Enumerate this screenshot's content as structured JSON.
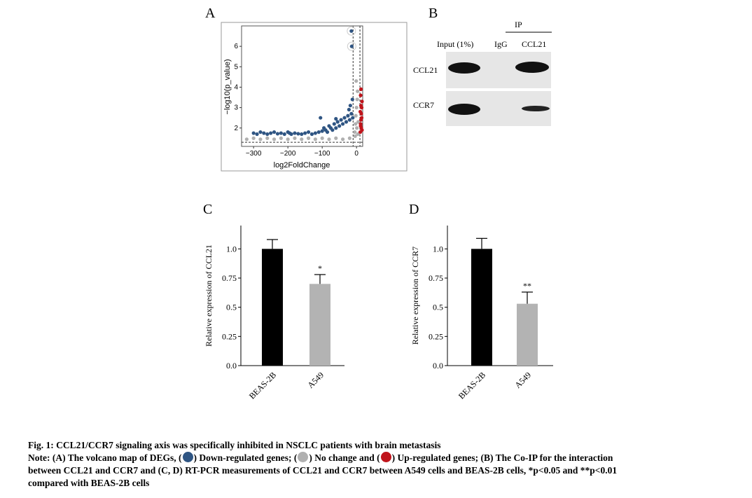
{
  "panels": {
    "a": "A",
    "b": "B",
    "c": "C",
    "d": "D"
  },
  "chart_data": [
    {
      "panel": "A",
      "type": "scatter",
      "xlabel": "log2FoldChange",
      "ylabel": "−log10(p_value)",
      "xticks": [
        -300,
        -200,
        -100,
        0
      ],
      "yticks": [
        2,
        3,
        4,
        5,
        6
      ],
      "xlim": [
        -335,
        18
      ],
      "ylim": [
        1.1,
        7.0
      ],
      "vlines": [
        -10,
        10
      ],
      "hline": 1.3,
      "series": [
        {
          "key": "down",
          "color": "#2f5583",
          "points": [
            [
              -300,
              1.75
            ],
            [
              -290,
              1.7
            ],
            [
              -280,
              1.8
            ],
            [
              -270,
              1.75
            ],
            [
              -260,
              1.7
            ],
            [
              -250,
              1.75
            ],
            [
              -240,
              1.8
            ],
            [
              -230,
              1.72
            ],
            [
              -220,
              1.75
            ],
            [
              -210,
              1.7
            ],
            [
              -200,
              1.8
            ],
            [
              -195,
              1.75
            ],
            [
              -190,
              1.7
            ],
            [
              -180,
              1.75
            ],
            [
              -170,
              1.72
            ],
            [
              -160,
              1.7
            ],
            [
              -150,
              1.75
            ],
            [
              -140,
              1.8
            ],
            [
              -130,
              1.7
            ],
            [
              -120,
              1.75
            ],
            [
              -110,
              1.8
            ],
            [
              -100,
              1.85
            ],
            [
              -95,
              2.0
            ],
            [
              -90,
              1.9
            ],
            [
              -85,
              1.8
            ],
            [
              -80,
              2.1
            ],
            [
              -75,
              2.0
            ],
            [
              -70,
              1.9
            ],
            [
              -65,
              2.2
            ],
            [
              -60,
              2.0
            ],
            [
              -55,
              2.3
            ],
            [
              -50,
              2.1
            ],
            [
              -45,
              2.4
            ],
            [
              -40,
              2.2
            ],
            [
              -35,
              2.5
            ],
            [
              -30,
              2.3
            ],
            [
              -25,
              2.6
            ],
            [
              -22,
              2.9
            ],
            [
              -20,
              2.4
            ],
            [
              -18,
              3.1
            ],
            [
              -15,
              2.7
            ],
            [
              -12,
              3.4
            ],
            [
              -11,
              2.5
            ],
            [
              -105,
              2.5
            ],
            [
              -60,
              2.45
            ],
            [
              -15,
              6.75
            ],
            [
              -14,
              6.0
            ]
          ]
        },
        {
          "key": "nochange",
          "color": "#b0b0b0",
          "points": [
            [
              -320,
              1.45
            ],
            [
              -300,
              1.5
            ],
            [
              -280,
              1.45
            ],
            [
              -260,
              1.5
            ],
            [
              -240,
              1.45
            ],
            [
              -220,
              1.5
            ],
            [
              -200,
              1.45
            ],
            [
              -180,
              1.5
            ],
            [
              -160,
              1.45
            ],
            [
              -140,
              1.5
            ],
            [
              -120,
              1.45
            ],
            [
              -100,
              1.5
            ],
            [
              -80,
              1.45
            ],
            [
              -60,
              1.5
            ],
            [
              -40,
              1.45
            ],
            [
              -20,
              1.5
            ],
            [
              -5,
              1.8
            ],
            [
              -3,
              2.2
            ],
            [
              -2,
              2.6
            ],
            [
              0,
              3.0
            ],
            [
              2,
              3.4
            ],
            [
              3,
              3.8
            ],
            [
              -1,
              4.3
            ],
            [
              1,
              2.0
            ],
            [
              -4,
              1.6
            ],
            [
              4,
              1.7
            ],
            [
              5,
              2.3
            ]
          ]
        },
        {
          "key": "up",
          "color": "#c0141b",
          "points": [
            [
              11,
              1.8
            ],
            [
              12,
              2.1
            ],
            [
              13,
              2.4
            ],
            [
              14,
              2.7
            ],
            [
              15,
              3.0
            ],
            [
              16,
              3.3
            ],
            [
              12,
              3.6
            ],
            [
              13,
              3.9
            ],
            [
              14,
              2.0
            ],
            [
              15,
              2.5
            ],
            [
              16,
              1.9
            ],
            [
              11,
              2.8
            ],
            [
              12,
              2.2
            ],
            [
              13,
              3.1
            ]
          ]
        }
      ]
    },
    {
      "panel": "C",
      "type": "bar",
      "ylabel": "Relative expression of CCL21",
      "categories": [
        "BEAS-2B",
        "A549"
      ],
      "values": [
        1.0,
        0.7
      ],
      "errors": [
        0.08,
        0.08
      ],
      "significance": [
        "",
        "*"
      ],
      "colors": [
        "#000000",
        "#b3b3b3"
      ],
      "yticks": [
        "0.0",
        "0.25",
        "0.5",
        "0.75",
        "1.0"
      ],
      "ylim": [
        0,
        1.2
      ]
    },
    {
      "panel": "D",
      "type": "bar",
      "ylabel": "Relative expression of CCR7",
      "categories": [
        "BEAS-2B",
        "A549"
      ],
      "values": [
        1.0,
        0.53
      ],
      "errors": [
        0.09,
        0.1
      ],
      "significance": [
        "",
        "**"
      ],
      "colors": [
        "#000000",
        "#b3b3b3"
      ],
      "yticks": [
        "0.0",
        "0.25",
        "0.5",
        "0.75",
        "1.0"
      ],
      "ylim": [
        0,
        1.2
      ]
    }
  ],
  "blot": {
    "ip": "IP",
    "lanes": [
      "Input (1%)",
      "IgG",
      "CCL21"
    ],
    "rows": [
      "CCL21",
      "CCR7"
    ]
  },
  "caption": {
    "title": "Fig. 1: CCL21/CCR7 signaling axis was specifically inhibited in NSCLC patients with brain metastasis",
    "note_start": "Note: (A) The volcano map of DEGs, (",
    "down": ") Down-regulated genes; (",
    "nochange": ") No change and (",
    "up": ") Up-regulated genes; (B) The Co-IP for the interaction",
    "line3": "between CCL21 and CCR7 and (C, D) RT-PCR measurements of CCL21 and CCR7 between A549 cells and BEAS-2B cells, *p<0.05 and **p<0.01",
    "line4": "compared with BEAS-2B cells",
    "colors": {
      "down": "#2f5583",
      "nochange": "#b0b0b0",
      "up": "#c0141b"
    }
  }
}
